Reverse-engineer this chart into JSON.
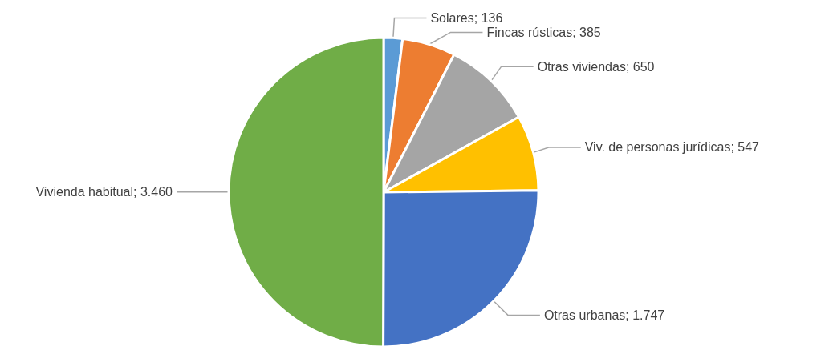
{
  "chart_data": {
    "type": "pie",
    "categories": [
      "Solares",
      "Fincas rústicas",
      "Otras viviendas",
      "Viv. de personas jurídicas",
      "Otras urbanas",
      "Vivienda habitual"
    ],
    "values": [
      136,
      385,
      650,
      547,
      1747,
      3460
    ],
    "value_labels": [
      "136",
      "385",
      "650",
      "547",
      "1.747",
      "3.460"
    ],
    "colors": [
      "#5b9bd5",
      "#ed7d31",
      "#a5a5a5",
      "#ffc000",
      "#4472c4",
      "#70ad47"
    ],
    "legend": false
  }
}
